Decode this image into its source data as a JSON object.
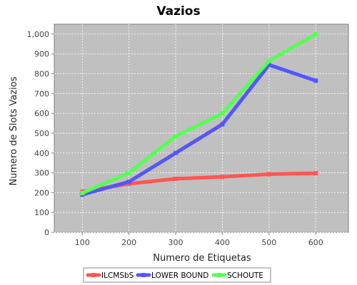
{
  "chart_data": {
    "type": "line",
    "title": "Vazios",
    "xlabel": "Numero de Etiquetas",
    "ylabel": "Numero de Slots Vazios",
    "x": [
      100,
      200,
      300,
      400,
      500,
      600
    ],
    "x_tick_labels": [
      "100",
      "200",
      "300",
      "400",
      "500",
      "600"
    ],
    "xlim": [
      40,
      670
    ],
    "ylim": [
      0,
      1050
    ],
    "y_ticks": [
      0,
      100,
      200,
      300,
      400,
      500,
      600,
      700,
      800,
      900,
      1000
    ],
    "y_tick_labels": [
      "0",
      "100",
      "200",
      "300",
      "400",
      "500",
      "600",
      "700",
      "800",
      "900",
      "1,000"
    ],
    "grid": true,
    "legend_position": "bottom",
    "plot_background": "#c0c0c0",
    "series": [
      {
        "name": "ILCMSbS",
        "color": "#ff5555",
        "values": [
          205,
          245,
          270,
          280,
          293,
          298
        ]
      },
      {
        "name": "LOWER BOUND",
        "color": "#5555ff",
        "values": [
          190,
          255,
          400,
          545,
          845,
          765
        ]
      },
      {
        "name": "SCHOUTE",
        "color": "#55ff55",
        "values": [
          198,
          300,
          485,
          600,
          865,
          1000
        ]
      }
    ]
  }
}
